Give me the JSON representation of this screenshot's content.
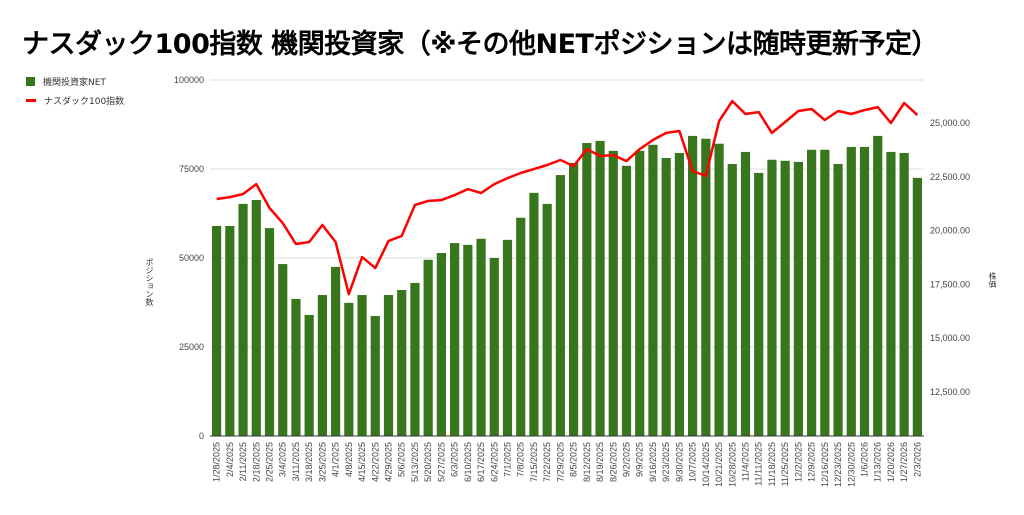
{
  "title": "ナスダック100指数 機関投資家（※その他NETポジションは随時更新予定）",
  "chart_data": {
    "type": "bar+line",
    "title": "ナスダック100指数 機関投資家（※その他NETポジションは随時更新予定）",
    "ylabel_left": "ポジション数",
    "ylabel_right": "株価",
    "ylim_left": [
      0,
      100000
    ],
    "ylim_right": [
      10455,
      27000
    ],
    "left_ticks": [
      "0",
      "25000",
      "50000",
      "75000",
      "100000"
    ],
    "left_tick_values": [
      0,
      25000,
      50000,
      75000,
      100000
    ],
    "right_ticks": [
      "12,500.00",
      "15,000.00",
      "17,500.00",
      "20,000.00",
      "22,500.00",
      "25,000.00"
    ],
    "right_tick_values": [
      12500,
      15000,
      17500,
      20000,
      22500,
      25000
    ],
    "legend_placement": "top-left",
    "categories": [
      "1/28/2025",
      "2/4/2025",
      "2/11/2025",
      "2/18/2025",
      "2/25/2025",
      "3/4/2025",
      "3/11/2025",
      "3/18/2025",
      "3/25/2025",
      "4/1/2025",
      "4/8/2025",
      "4/15/2025",
      "4/22/2025",
      "4/29/2025",
      "5/6/2025",
      "5/13/2025",
      "5/20/2025",
      "5/27/2025",
      "6/3/2025",
      "6/10/2025",
      "6/17/2025",
      "6/24/2025",
      "7/1/2025",
      "7/8/2025",
      "7/15/2025",
      "7/22/2025",
      "7/29/2025",
      "8/5/2025",
      "8/12/2025",
      "8/19/2025",
      "8/26/2025",
      "9/2/2025",
      "9/9/2025",
      "9/16/2025",
      "9/23/2025",
      "9/30/2025",
      "10/7/2025",
      "10/14/2025",
      "10/21/2025",
      "10/28/2025",
      "11/4/2025",
      "11/11/2025",
      "11/18/2025",
      "11/25/2025",
      "12/2/2025",
      "12/9/2025",
      "12/16/2025",
      "12/23/2025",
      "12/30/2025",
      "1/6/2026",
      "1/13/2026",
      "1/20/2026",
      "1/27/2026",
      "2/3/2026"
    ],
    "series": [
      {
        "name": "機関投資家NET",
        "type": "bar",
        "axis": "left",
        "color": "#38761d",
        "values": [
          59000,
          59000,
          65200,
          66300,
          58400,
          48300,
          38500,
          34000,
          39600,
          47500,
          37400,
          39600,
          33700,
          39600,
          41000,
          43000,
          49500,
          51400,
          54200,
          53700,
          55400,
          50000,
          55100,
          61300,
          68300,
          65200,
          73300,
          76700,
          82300,
          82900,
          80100,
          75900,
          80100,
          81800,
          78100,
          79500,
          84300,
          83500,
          82100,
          76400,
          79800,
          73900,
          77600,
          77300,
          77000,
          80400,
          80400,
          76400,
          81200,
          81200,
          84300,
          79800,
          79500,
          72500
        ]
      },
      {
        "name": "ナスダック100指数",
        "type": "line",
        "axis": "right",
        "color": "#ff0000",
        "values": [
          21470,
          21560,
          21700,
          22160,
          21050,
          20350,
          19380,
          19470,
          20260,
          19470,
          17050,
          18770,
          18260,
          19520,
          19750,
          21190,
          21380,
          21420,
          21650,
          21930,
          21750,
          22160,
          22440,
          22680,
          22860,
          23050,
          23280,
          23000,
          23790,
          23470,
          23510,
          23230,
          23790,
          24210,
          24540,
          24630,
          22770,
          22540,
          25090,
          26020,
          25420,
          25510,
          24540,
          25050,
          25560,
          25650,
          25140,
          25560,
          25420,
          25600,
          25740,
          25000,
          25930,
          25370
        ]
      }
    ]
  }
}
